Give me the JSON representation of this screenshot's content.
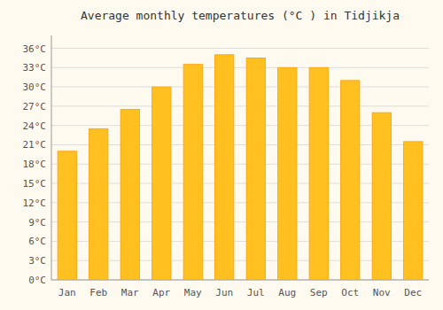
{
  "chart_data": {
    "type": "bar",
    "title": "Average monthly temperatures (°C ) in Tidjikja",
    "categories": [
      "Jan",
      "Feb",
      "Mar",
      "Apr",
      "May",
      "Jun",
      "Jul",
      "Aug",
      "Sep",
      "Oct",
      "Nov",
      "Dec"
    ],
    "values": [
      20,
      23.5,
      26.5,
      30,
      33.5,
      35,
      34.5,
      33,
      33,
      31,
      26,
      21.5
    ],
    "color": "#FFC020",
    "ylim": [
      0,
      38
    ],
    "yticks": [
      {
        "value": 0,
        "label": "0°C"
      },
      {
        "value": 3,
        "label": "3°C"
      },
      {
        "value": 6,
        "label": "6°C"
      },
      {
        "value": 9,
        "label": "9°C"
      },
      {
        "value": 12,
        "label": "12°C"
      },
      {
        "value": 15,
        "label": "15°C"
      },
      {
        "value": 18,
        "label": "18°C"
      },
      {
        "value": 21,
        "label": "21°C"
      },
      {
        "value": 24,
        "label": "24°C"
      },
      {
        "value": 27,
        "label": "27°C"
      },
      {
        "value": 30,
        "label": "30°C"
      },
      {
        "value": 33,
        "label": "33°C"
      },
      {
        "value": 36,
        "label": "36°C"
      }
    ],
    "grid": true
  }
}
